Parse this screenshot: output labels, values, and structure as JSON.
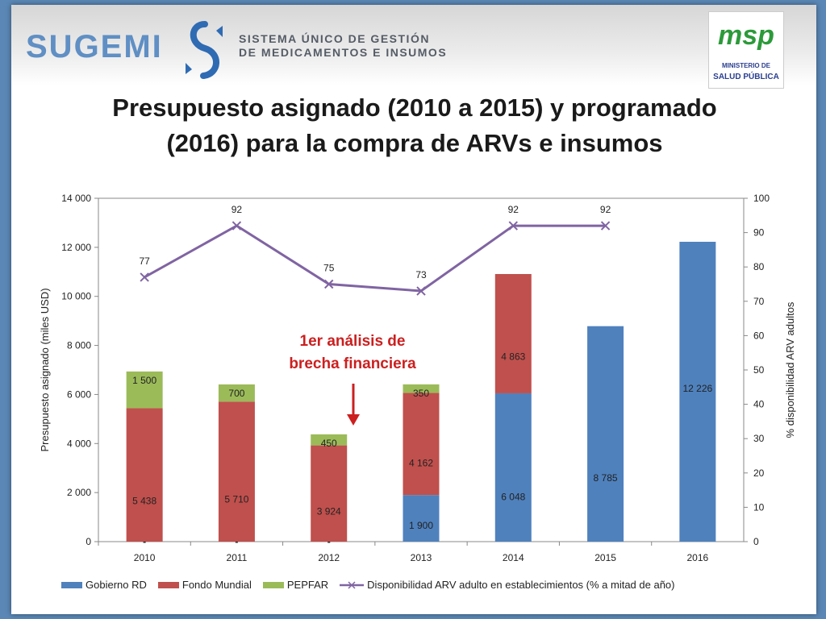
{
  "header": {
    "org_word": "SUGEMI",
    "org_tagline_line1": "SISTEMA ÚNICO DE GESTIÓN",
    "org_tagline_line2": "DE MEDICAMENTOS E INSUMOS",
    "ministry_mark": "msp",
    "ministry_line1": "MINISTERIO DE",
    "ministry_line2": "SALUD PÚBLICA"
  },
  "title_line1": "Presupuesto asignado (2010 a 2015) y programado",
  "title_line2": "(2016) para la compra de ARVs e insumos",
  "annotation_line1": "1er análisis de",
  "annotation_line2": "brecha financiera",
  "colors": {
    "gobierno": "#4f81bd",
    "fondo": "#c0504d",
    "pepfar": "#9bbb59",
    "line": "#8064a2",
    "annotation": "#cc1f1f"
  },
  "chart_data": {
    "type": "bar",
    "stacked": true,
    "categories": [
      "2010",
      "2011",
      "2012",
      "2013",
      "2014",
      "2015",
      "2016"
    ],
    "series": [
      {
        "name": "Gobierno RD",
        "values": [
          0,
          0,
          0,
          1900,
          6048,
          8785,
          12226
        ],
        "labels": [
          "-",
          "-",
          "-",
          "1 900",
          "6 048",
          "8 785",
          "12 226"
        ]
      },
      {
        "name": "Fondo Mundial",
        "values": [
          5438,
          5710,
          3924,
          4162,
          4863,
          0,
          0
        ],
        "labels": [
          "5 438",
          "5 710",
          "3 924",
          "4 162",
          "4 863",
          "",
          ""
        ]
      },
      {
        "name": "PEPFAR",
        "values": [
          1500,
          700,
          450,
          350,
          0,
          0,
          0
        ],
        "labels": [
          "1 500",
          "700",
          "450",
          "350",
          "",
          "",
          ""
        ]
      }
    ],
    "line_series": {
      "name": "Disponibilidad ARV adulto en establecimientos (% a mitad de año)",
      "axis": "right",
      "values": [
        77,
        92,
        75,
        73,
        92,
        92,
        null
      ]
    },
    "ylabel": "Presupuesto asignado (miles USD)",
    "y2label": "% disponibilidad ARV adultos",
    "ylim": [
      0,
      14000
    ],
    "y2lim": [
      0,
      100
    ],
    "yticks": [
      "0",
      "2 000",
      "4 000",
      "6 000",
      "8 000",
      "10 000",
      "12 000",
      "14 000"
    ],
    "y2ticks": [
      "0",
      "10",
      "20",
      "30",
      "40",
      "50",
      "60",
      "70",
      "80",
      "90",
      "100"
    ],
    "legend_position": "bottom"
  }
}
